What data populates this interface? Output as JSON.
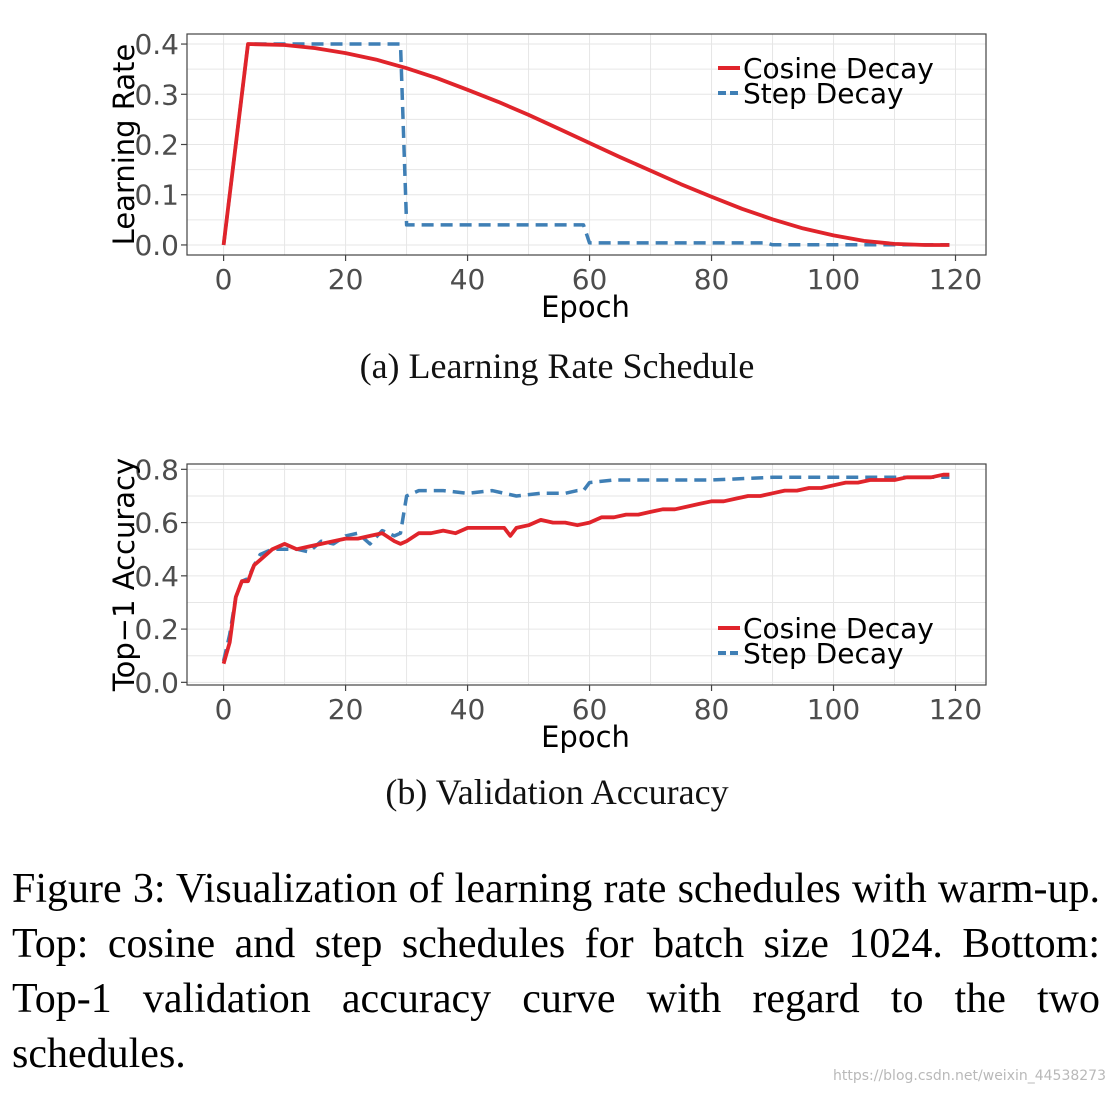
{
  "captions": {
    "a": "(a) Learning Rate Schedule",
    "b": "(b) Validation Accuracy",
    "figure": "Figure 3:  Visualization of learning rate schedules with warm-up.  Top:  cosine and step schedules for batch size 1024. Bottom: Top-1 validation accuracy curve with regard to the two schedules."
  },
  "watermark": "https://blog.csdn.net/weixin_44538273",
  "colors": {
    "cosine": "#e0242b",
    "step": "#3f7fb5",
    "grid": "#e6e6e6",
    "axis": "#444444"
  },
  "chart_data": [
    {
      "type": "line",
      "xlabel": "Epoch",
      "ylabel": "Learning Rate",
      "xlim": [
        -6,
        125
      ],
      "ylim": [
        -0.02,
        0.42
      ],
      "xticks": [
        0,
        20,
        40,
        60,
        80,
        100,
        120
      ],
      "yticks": [
        0.0,
        0.1,
        0.2,
        0.3,
        0.4
      ],
      "ytick_labels": [
        "0.0",
        "0.1",
        "0.2",
        "0.3",
        "0.4"
      ],
      "grid": true,
      "legend_position": "top-right",
      "series": [
        {
          "name": "Cosine Decay",
          "style": "solid",
          "x": [
            0,
            4,
            10,
            15,
            20,
            25,
            30,
            35,
            40,
            45,
            50,
            55,
            60,
            65,
            70,
            75,
            80,
            85,
            90,
            95,
            100,
            105,
            110,
            115,
            119
          ],
          "y": [
            0.0,
            0.4,
            0.398,
            0.392,
            0.382,
            0.369,
            0.352,
            0.332,
            0.309,
            0.285,
            0.259,
            0.231,
            0.203,
            0.175,
            0.148,
            0.121,
            0.096,
            0.072,
            0.051,
            0.033,
            0.019,
            0.008,
            0.002,
            0.0,
            0.0
          ]
        },
        {
          "name": "Step Decay",
          "style": "dashed",
          "x": [
            0,
            4,
            29,
            30,
            59,
            60,
            89,
            90,
            119
          ],
          "y": [
            0.0,
            0.4,
            0.4,
            0.04,
            0.04,
            0.004,
            0.004,
            0.0004,
            0.0004
          ]
        }
      ]
    },
    {
      "type": "line",
      "xlabel": "Epoch",
      "ylabel": "Top−1 Accuracy",
      "xlim": [
        -6,
        125
      ],
      "ylim": [
        -0.01,
        0.82
      ],
      "xticks": [
        0,
        20,
        40,
        60,
        80,
        100,
        120
      ],
      "yticks": [
        0.0,
        0.2,
        0.4,
        0.6,
        0.8
      ],
      "ytick_labels": [
        "0.0",
        "0.2",
        "0.4",
        "0.6",
        "0.8"
      ],
      "grid": true,
      "legend_position": "bottom-right",
      "series": [
        {
          "name": "Cosine Decay",
          "style": "solid",
          "x": [
            0,
            1,
            2,
            3,
            4,
            5,
            6,
            8,
            10,
            12,
            14,
            16,
            18,
            20,
            22,
            24,
            26,
            28,
            29,
            30,
            32,
            34,
            36,
            38,
            40,
            42,
            44,
            46,
            47,
            48,
            50,
            52,
            54,
            56,
            58,
            60,
            62,
            64,
            66,
            68,
            70,
            72,
            74,
            76,
            78,
            80,
            82,
            84,
            86,
            88,
            90,
            92,
            94,
            96,
            98,
            100,
            102,
            104,
            106,
            108,
            110,
            112,
            114,
            116,
            118,
            119
          ],
          "y": [
            0.07,
            0.15,
            0.32,
            0.38,
            0.38,
            0.44,
            0.46,
            0.5,
            0.52,
            0.5,
            0.51,
            0.52,
            0.53,
            0.54,
            0.54,
            0.55,
            0.56,
            0.53,
            0.52,
            0.53,
            0.56,
            0.56,
            0.57,
            0.56,
            0.58,
            0.58,
            0.58,
            0.58,
            0.55,
            0.58,
            0.59,
            0.61,
            0.6,
            0.6,
            0.59,
            0.6,
            0.62,
            0.62,
            0.63,
            0.63,
            0.64,
            0.65,
            0.65,
            0.66,
            0.67,
            0.68,
            0.68,
            0.69,
            0.7,
            0.7,
            0.71,
            0.72,
            0.72,
            0.73,
            0.73,
            0.74,
            0.75,
            0.75,
            0.76,
            0.76,
            0.76,
            0.77,
            0.77,
            0.77,
            0.78,
            0.78
          ]
        },
        {
          "name": "Step Decay",
          "style": "dashed",
          "x": [
            0,
            1,
            2,
            3,
            4,
            5,
            6,
            8,
            10,
            12,
            14,
            16,
            18,
            20,
            22,
            24,
            26,
            28,
            29,
            30,
            32,
            36,
            40,
            44,
            48,
            52,
            56,
            58,
            59,
            60,
            64,
            70,
            80,
            90,
            100,
            110,
            119
          ],
          "y": [
            0.08,
            0.18,
            0.32,
            0.38,
            0.39,
            0.44,
            0.48,
            0.5,
            0.5,
            0.5,
            0.49,
            0.53,
            0.52,
            0.55,
            0.56,
            0.52,
            0.57,
            0.55,
            0.56,
            0.7,
            0.72,
            0.72,
            0.71,
            0.72,
            0.7,
            0.71,
            0.71,
            0.72,
            0.72,
            0.75,
            0.76,
            0.76,
            0.76,
            0.77,
            0.77,
            0.77,
            0.77
          ]
        }
      ]
    }
  ]
}
